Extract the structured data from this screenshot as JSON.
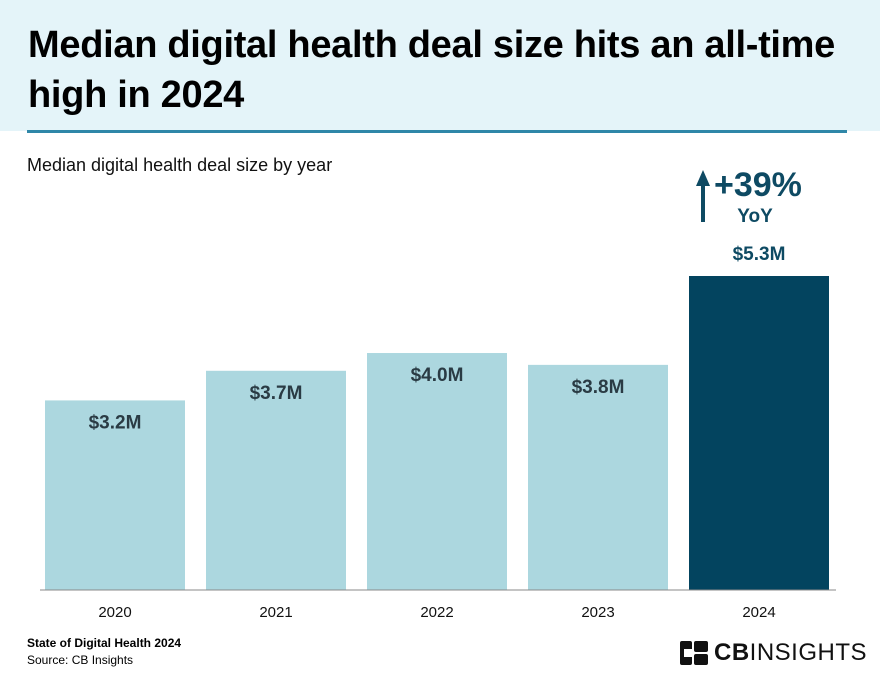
{
  "header": {
    "title": "Median digital health deal size hits an all-time high in 2024"
  },
  "chart_data": {
    "type": "bar",
    "title": "Median digital health deal size hits an all-time high in 2024",
    "subtitle": "Median digital health deal size by year",
    "categories": [
      "2020",
      "2021",
      "2022",
      "2023",
      "2024"
    ],
    "values": [
      3.2,
      3.7,
      4.0,
      3.8,
      5.3
    ],
    "data_labels": [
      "$3.2M",
      "$3.7M",
      "$4.0M",
      "$3.8M",
      "$5.3M"
    ],
    "unit": "$M",
    "ylim": [
      0,
      5.3
    ],
    "grid": false,
    "colors": {
      "default_bar": "#acd7df",
      "highlight_bar": "#03445f",
      "label_dark": "#2a3b44",
      "callout": "#0e4a63"
    },
    "highlight_index": 4,
    "annotation": {
      "arrow": "up-arrow",
      "change": "+39%",
      "suffix": "YoY"
    }
  },
  "footer": {
    "report": "State of Digital Health 2024",
    "source": "Source: CB Insights",
    "logo_bold": "CB",
    "logo_regular": "INSIGHTS"
  }
}
